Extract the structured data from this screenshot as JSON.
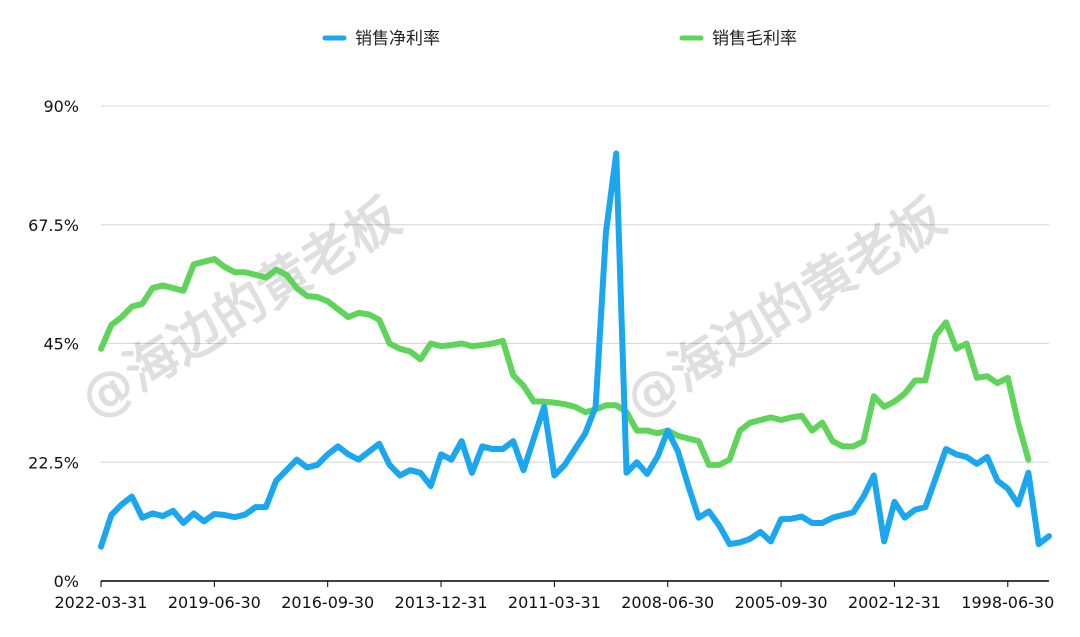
{
  "chart_data": {
    "type": "line",
    "title": "",
    "xlabel": "",
    "ylabel": "",
    "ylim": [
      0,
      90
    ],
    "yticks": [
      0,
      22.5,
      45,
      67.5,
      90
    ],
    "ytick_labels": [
      "0%",
      "22.5%",
      "45%",
      "67.5%",
      "90%"
    ],
    "x_axis_direction": "reverse-chronological",
    "xtick_labels": [
      "2022-03-31",
      "2019-06-30",
      "2016-09-30",
      "2013-12-31",
      "2011-03-31",
      "2008-06-30",
      "2005-09-30",
      "2002-12-31",
      "1998-06-30"
    ],
    "xtick_indices": [
      0,
      11,
      22,
      33,
      44,
      55,
      66,
      77,
      88
    ],
    "grid": true,
    "legend_position": "top",
    "colors": {
      "net_margin": "#1aa7f0",
      "gross_margin": "#5fd45a"
    },
    "series": [
      {
        "name": "销售净利率",
        "values": [
          6.5,
          12.5,
          14.5,
          16,
          12,
          12.8,
          12.3,
          13.3,
          11,
          12.8,
          11.3,
          12.7,
          12.5,
          12.1,
          12.6,
          14,
          14,
          19,
          21,
          23,
          21.5,
          22,
          24,
          25.5,
          24,
          23,
          24.5,
          26,
          22,
          20,
          21,
          20.5,
          18,
          24,
          23,
          26.5,
          20.5,
          25.5,
          25,
          25,
          26.5,
          21,
          27,
          33,
          20,
          22,
          25,
          28,
          33,
          66,
          81,
          20.5,
          22.5,
          20.3,
          23.5,
          28.5,
          24.5,
          18,
          12,
          13.2,
          10.5,
          7,
          7.3,
          8,
          9.3,
          7.5,
          11.7,
          11.8,
          12.2,
          11,
          11,
          12,
          12.5,
          13,
          16,
          20,
          7.5,
          15,
          12,
          13.5,
          14,
          19.5,
          25,
          24,
          23.5,
          22.2,
          23.5,
          19,
          17.5,
          14.5,
          20.5,
          7,
          8.5
        ]
      },
      {
        "name": "销售毛利率",
        "values": [
          44,
          48.5,
          50,
          52,
          52.5,
          55.5,
          56,
          55.5,
          55,
          60,
          60.5,
          61,
          59.5,
          58.5,
          58.5,
          58,
          57.5,
          59,
          58,
          55.5,
          54,
          53.8,
          53,
          51.5,
          50,
          50.8,
          50.5,
          49.5,
          45,
          44,
          43.5,
          42,
          45,
          44.5,
          44.7,
          45,
          44.5,
          44.7,
          45,
          45.5,
          39,
          37,
          34,
          34,
          33.8,
          33.5,
          33,
          32,
          32.5,
          33.3,
          33.3,
          32,
          28.5,
          28.5,
          28,
          28.5,
          27.5,
          27,
          26.5,
          22,
          22,
          23,
          28.5,
          30,
          30.5,
          31,
          30.5,
          31,
          31.3,
          28.5,
          30,
          26.5,
          25.5,
          25.5,
          26.5,
          35,
          33,
          34,
          35.5,
          38,
          38,
          46.5,
          49,
          44,
          45,
          38.5,
          38.8,
          37.5,
          38.5,
          30,
          23
        ]
      }
    ]
  },
  "watermark": {
    "text": "@海边的黄老板"
  }
}
